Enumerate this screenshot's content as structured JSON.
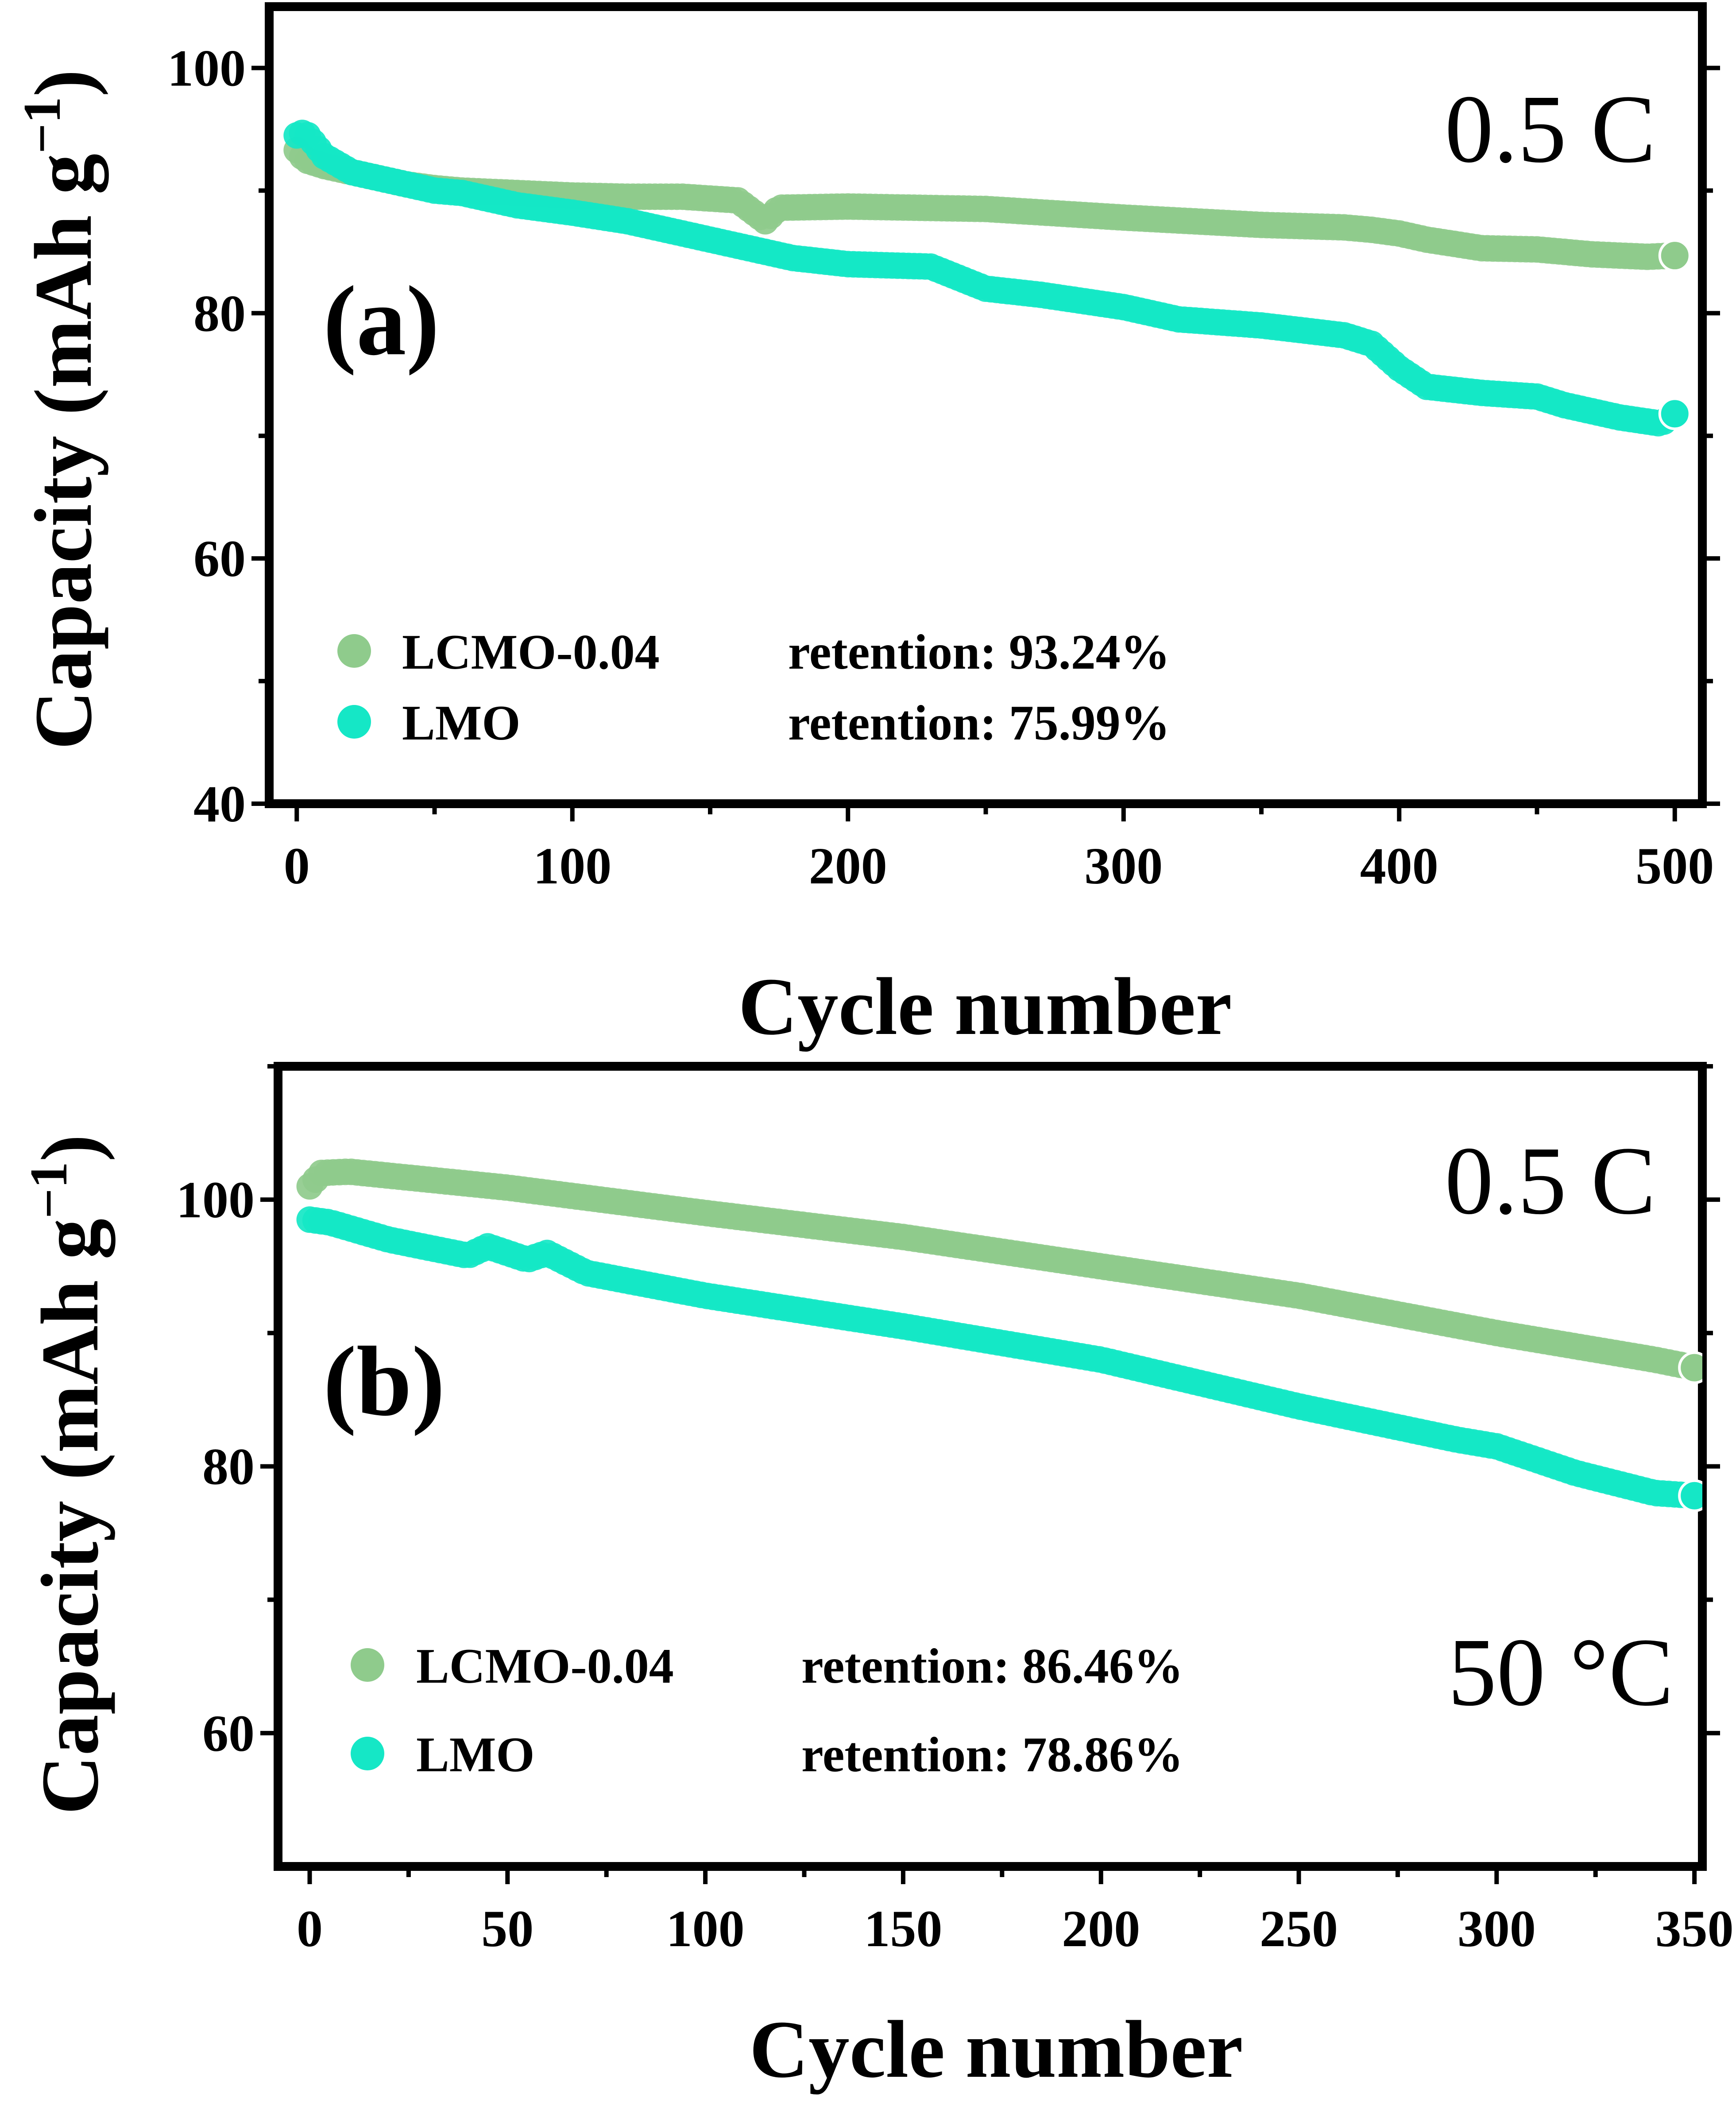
{
  "colors": {
    "series_a": "#8FCB8C",
    "series_b": "#15E7C6",
    "axis": "#000000"
  },
  "chart_data": [
    {
      "type": "scatter",
      "panel_label": "(a)",
      "rate_label": "0.5 C",
      "temperature_label": "",
      "xlabel": "Cycle number",
      "ylabel_main": "Capacity (mAh g",
      "ylabel_sup": "−1",
      "ylabel_close": ")",
      "xlim": [
        -10,
        510
      ],
      "ylim": [
        40,
        105
      ],
      "xticks": [
        0,
        100,
        200,
        300,
        400,
        500
      ],
      "yticks": [
        40,
        60,
        80,
        100
      ],
      "legend_position": "bottom-left",
      "series": [
        {
          "name": "LCMO-0.04",
          "retention": "retention: 93.24%",
          "points": [
            [
              0,
              93.3
            ],
            [
              3,
              92.5
            ],
            [
              10,
              92
            ],
            [
              20,
              91.5
            ],
            [
              30,
              91
            ],
            [
              40,
              90.5
            ],
            [
              50,
              90.2
            ],
            [
              60,
              90
            ],
            [
              80,
              89.8
            ],
            [
              100,
              89.6
            ],
            [
              120,
              89.5
            ],
            [
              140,
              89.5
            ],
            [
              160,
              89.2
            ],
            [
              170,
              87.5
            ],
            [
              175,
              88.6
            ],
            [
              200,
              88.7
            ],
            [
              250,
              88.5
            ],
            [
              300,
              87.8
            ],
            [
              350,
              87.2
            ],
            [
              380,
              87
            ],
            [
              390,
              86.8
            ],
            [
              400,
              86.5
            ],
            [
              410,
              86
            ],
            [
              430,
              85.3
            ],
            [
              450,
              85.2
            ],
            [
              470,
              84.8
            ],
            [
              490,
              84.6
            ],
            [
              500,
              84.7
            ]
          ]
        },
        {
          "name": "LMO",
          "retention": "retention: 75.99%",
          "points": [
            [
              0,
              94.5
            ],
            [
              3,
              94.8
            ],
            [
              10,
              92.8
            ],
            [
              20,
              91.5
            ],
            [
              30,
              91
            ],
            [
              40,
              90.5
            ],
            [
              50,
              90
            ],
            [
              60,
              89.8
            ],
            [
              80,
              88.8
            ],
            [
              100,
              88.2
            ],
            [
              120,
              87.5
            ],
            [
              140,
              86.5
            ],
            [
              160,
              85.5
            ],
            [
              180,
              84.5
            ],
            [
              200,
              84
            ],
            [
              230,
              83.8
            ],
            [
              250,
              82
            ],
            [
              270,
              81.5
            ],
            [
              300,
              80.5
            ],
            [
              320,
              79.5
            ],
            [
              350,
              79
            ],
            [
              380,
              78.2
            ],
            [
              390,
              77.5
            ],
            [
              400,
              75.5
            ],
            [
              410,
              74
            ],
            [
              430,
              73.5
            ],
            [
              450,
              73.2
            ],
            [
              460,
              72.5
            ],
            [
              480,
              71.5
            ],
            [
              495,
              71
            ],
            [
              500,
              71.8
            ]
          ]
        }
      ]
    },
    {
      "type": "scatter",
      "panel_label": "(b)",
      "rate_label": "0.5 C",
      "temperature_label": "50 °C",
      "xlabel": "Cycle number",
      "ylabel_main": "Capacity (mAh g",
      "ylabel_sup": "−1",
      "ylabel_close": ")",
      "xlim": [
        -8,
        352
      ],
      "ylim": [
        50,
        110
      ],
      "xticks": [
        0,
        50,
        100,
        150,
        200,
        250,
        300,
        350
      ],
      "yticks": [
        60,
        80,
        100
      ],
      "legend_position": "bottom-left",
      "series": [
        {
          "name": "LCMO-0.04",
          "retention": "retention: 86.46%",
          "points": [
            [
              0,
              101
            ],
            [
              3,
              102
            ],
            [
              10,
              102.1
            ],
            [
              30,
              101.5
            ],
            [
              50,
              100.9
            ],
            [
              100,
              99
            ],
            [
              150,
              97.2
            ],
            [
              200,
              95
            ],
            [
              250,
              92.8
            ],
            [
              300,
              90
            ],
            [
              340,
              88
            ],
            [
              350,
              87.4
            ]
          ]
        },
        {
          "name": "LMO",
          "retention": "retention: 78.86%",
          "points": [
            [
              0,
              98.5
            ],
            [
              5,
              98.3
            ],
            [
              20,
              97
            ],
            [
              40,
              95.8
            ],
            [
              45,
              96.5
            ],
            [
              55,
              95.5
            ],
            [
              60,
              96
            ],
            [
              70,
              94.5
            ],
            [
              100,
              92.8
            ],
            [
              150,
              90.5
            ],
            [
              200,
              88
            ],
            [
              250,
              84.5
            ],
            [
              290,
              82
            ],
            [
              300,
              81.5
            ],
            [
              320,
              79.5
            ],
            [
              340,
              78
            ],
            [
              350,
              77.8
            ]
          ]
        }
      ]
    }
  ]
}
